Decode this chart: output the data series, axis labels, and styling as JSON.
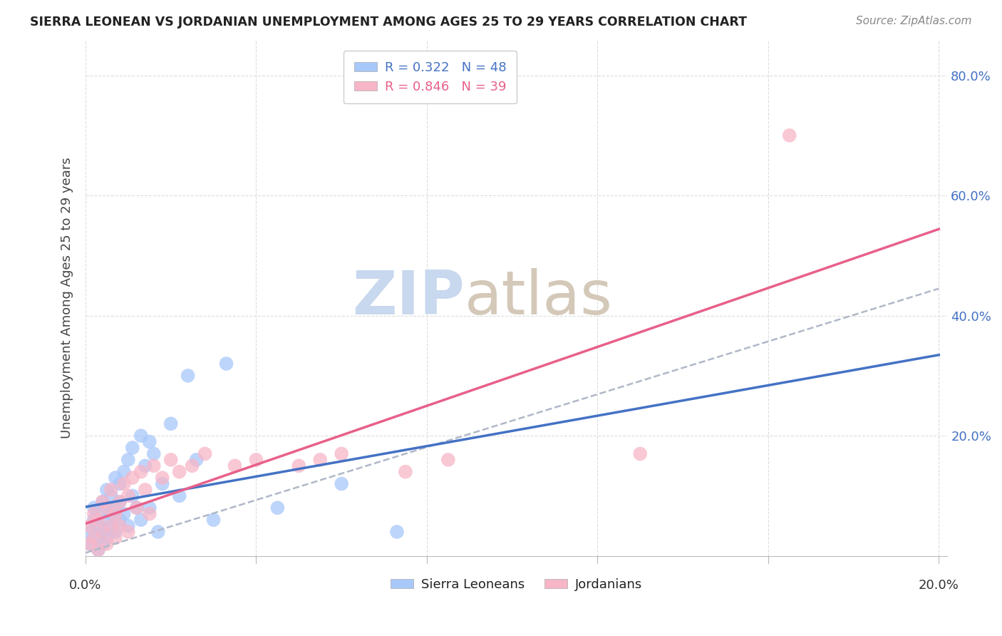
{
  "title": "SIERRA LEONEAN VS JORDANIAN UNEMPLOYMENT AMONG AGES 25 TO 29 YEARS CORRELATION CHART",
  "source": "Source: ZipAtlas.com",
  "ylabel": "Unemployment Among Ages 25 to 29 years",
  "xlim": [
    0.0,
    0.2
  ],
  "ylim": [
    0.0,
    0.86
  ],
  "yticks": [
    0.0,
    0.2,
    0.4,
    0.6,
    0.8
  ],
  "ytick_labels": [
    "",
    "20.0%",
    "40.0%",
    "60.0%",
    "80.0%"
  ],
  "sierra_R": 0.322,
  "sierra_N": 48,
  "jordan_R": 0.846,
  "jordan_N": 39,
  "sierra_color": "#a8c8fa",
  "jordan_color": "#f7b6c8",
  "sierra_line_color": "#4472c4",
  "jordan_line_color": "#e8608a",
  "dash_line_color": "#b0b8c8",
  "watermark_zip_color": "#c8d8ee",
  "watermark_atlas_color": "#d4c8b8",
  "background_color": "#ffffff",
  "legend_edge_color": "#cccccc",
  "grid_color": "#dddddd",
  "axis_color": "#bbbbbb",
  "title_color": "#222222",
  "source_color": "#888888",
  "ylabel_color": "#444444",
  "tick_label_color": "#4472c4",
  "xlabel_color": "#333333",
  "legend_text_color_1": "#4472c4",
  "legend_text_color_2": "#e8608a"
}
